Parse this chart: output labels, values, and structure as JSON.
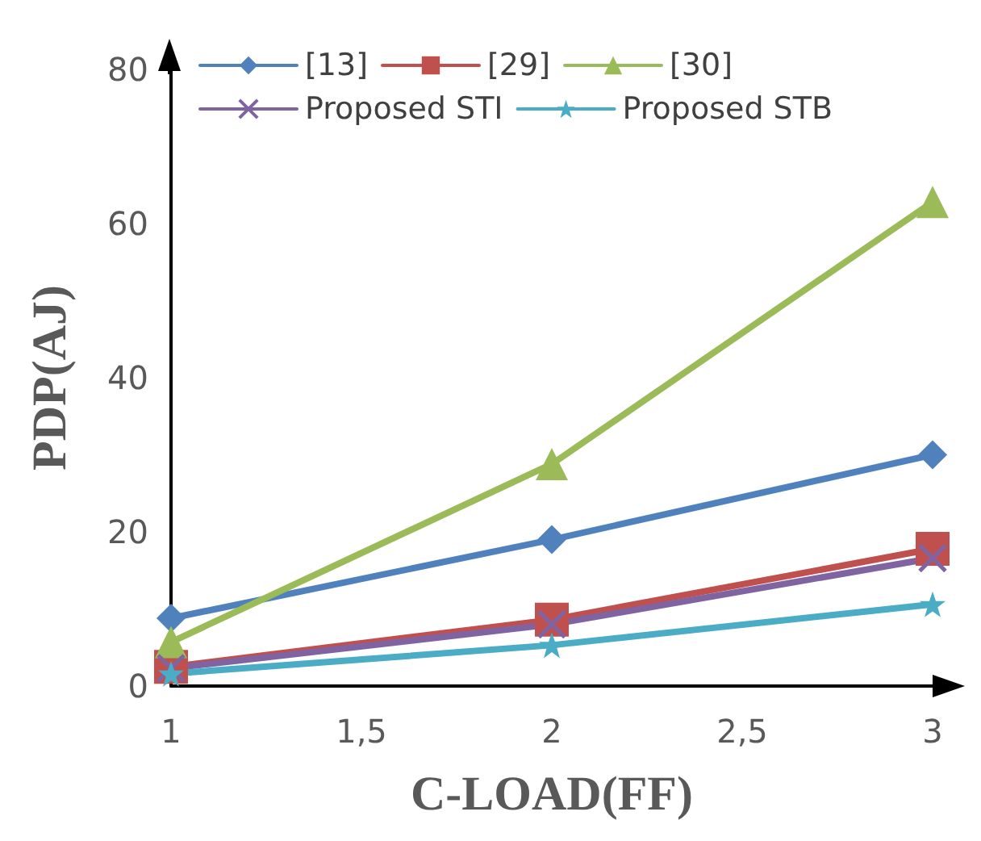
{
  "chart_data": {
    "type": "line",
    "xlabel": "C-LOAD(FF)",
    "ylabel": "PDP(AJ)",
    "x": [
      1,
      2,
      3
    ],
    "xlim": [
      1,
      3
    ],
    "xticks": [
      1,
      {
        "value": 1.5,
        "label": "1,5"
      },
      2,
      {
        "value": 2.5,
        "label": "2,5"
      },
      3
    ],
    "ylim": [
      0,
      80
    ],
    "yticks": [
      0,
      20,
      40,
      60,
      80
    ],
    "grid": false,
    "legend": "top left",
    "line_style": "solid",
    "series": [
      {
        "name": "[13]",
        "color": "#4f81bd",
        "marker": "diamond",
        "values": [
          8.8,
          19,
          30
        ]
      },
      {
        "name": "[29]",
        "color": "#c0504d",
        "marker": "square",
        "values": [
          2.5,
          8.6,
          17.8
        ]
      },
      {
        "name": "[30]",
        "color": "#9bbb59",
        "marker": "triangle",
        "values": [
          5.7,
          28.8,
          62.8
        ]
      },
      {
        "name": "Proposed STI",
        "color": "#8064a2",
        "marker": "cross",
        "values": [
          2.3,
          8,
          16.6
        ]
      },
      {
        "name": "Proposed STB",
        "color": "#4bacc6",
        "marker": "star",
        "values": [
          1.6,
          5.3,
          10.6
        ]
      }
    ]
  }
}
